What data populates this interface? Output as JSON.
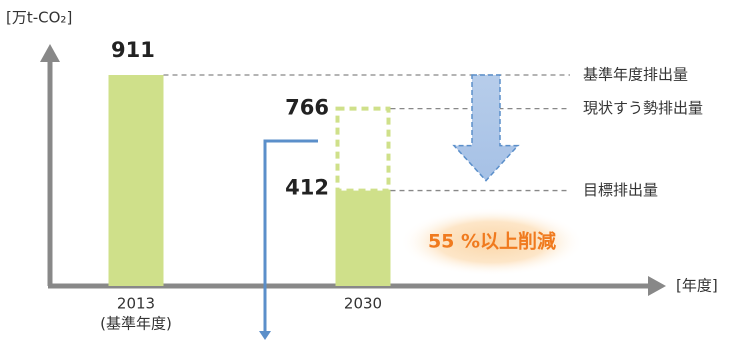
{
  "chart_data": {
    "type": "bar",
    "y_label": "[万t-CO₂]",
    "x_label": "[年度]",
    "categories": [
      "2013",
      "2030"
    ],
    "category_sublabels": [
      "(基準年度)",
      null
    ],
    "values": [
      911,
      412
    ],
    "value_names": [
      "基準年度排出量",
      "目標排出量"
    ],
    "color": "#cfe08a",
    "bau_value": 766,
    "bau_name": "現状すう勢排出量",
    "bau_color": "#cfe08a",
    "ylim": [
      0,
      1000
    ],
    "annotation": "55 %以上削減",
    "annotation_color": "#f07a1e"
  }
}
